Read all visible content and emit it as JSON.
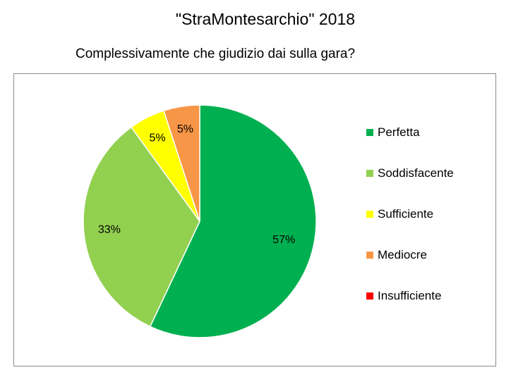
{
  "title": "\"StraMontesarchio\" 2018",
  "subtitle": "Complessivamente che giudizio dai sulla gara?",
  "chart_data": {
    "type": "pie",
    "categories": [
      "Perfetta",
      "Soddisfacente",
      "Sufficiente",
      "Mediocre",
      "Insufficiente"
    ],
    "values": [
      57,
      33,
      5,
      5,
      0
    ],
    "data_labels": [
      "57%",
      "33%",
      "5%",
      "5%",
      ""
    ],
    "colors": [
      "#00b050",
      "#92d050",
      "#ffff00",
      "#f79646",
      "#ff0000"
    ],
    "legend_position": "right"
  }
}
